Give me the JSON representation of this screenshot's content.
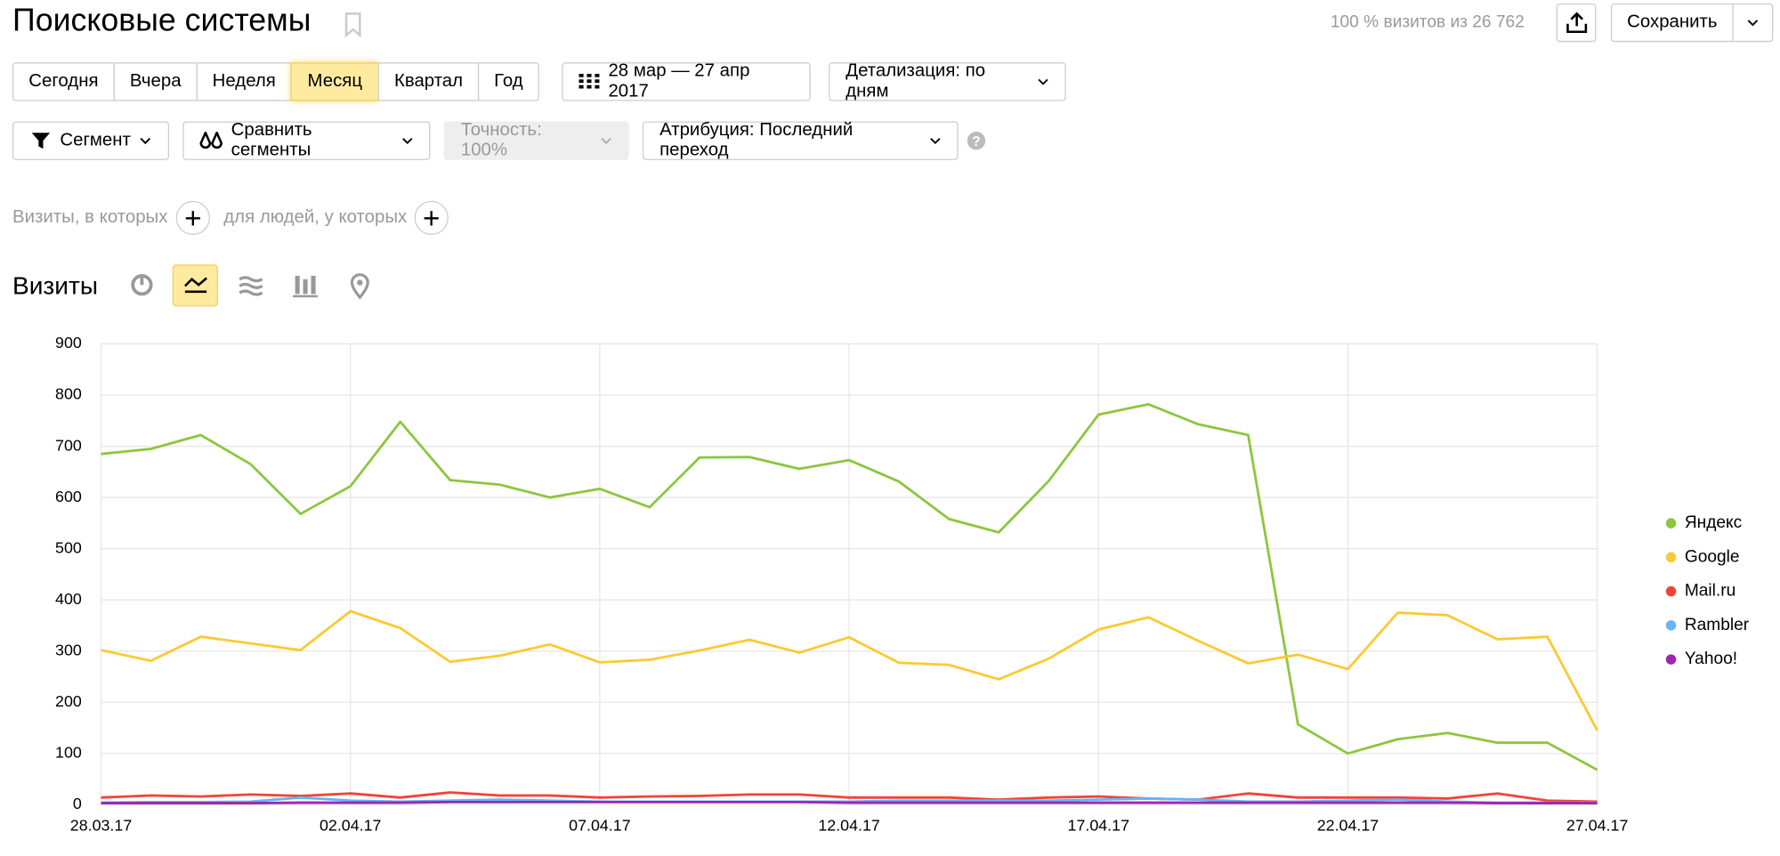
{
  "header": {
    "title": "Поисковые системы",
    "summary": "100 % визитов из 26 762",
    "save": "Сохранить"
  },
  "periods": [
    "Сегодня",
    "Вчера",
    "Неделя",
    "Месяц",
    "Квартал",
    "Год"
  ],
  "date_range": "28 мар — 27 апр 2017",
  "detail": "Детализация: по дням",
  "segment": "Сегмент",
  "compare": "Сравнить сегменты",
  "accuracy": "Точность: 100%",
  "attribution": "Атрибуция: Последний переход",
  "filter": {
    "visits": "Визиты, в которых",
    "people": "для людей, у которых"
  },
  "chart_data": {
    "type": "line",
    "title": "Визиты",
    "categories": [
      "28.03.17",
      null,
      null,
      null,
      null,
      "02.04.17",
      null,
      null,
      null,
      null,
      "07.04.17",
      null,
      null,
      null,
      null,
      "12.04.17",
      null,
      null,
      null,
      null,
      "17.04.17",
      null,
      null,
      null,
      null,
      "22.04.17",
      null,
      null,
      null,
      null,
      "27.04.17"
    ],
    "xtick_colors": [
      null,
      null,
      null,
      null,
      null,
      "#c8102e",
      null,
      null,
      null,
      null,
      null,
      null,
      null,
      null,
      null,
      null,
      null,
      null,
      null,
      null,
      null,
      null,
      null,
      null,
      null,
      "#c8102e",
      null,
      null,
      null,
      null,
      null
    ],
    "series": [
      {
        "name": "Яндекс",
        "color": "#8dc63f",
        "values": [
          685,
          695,
          722,
          665,
          568,
          622,
          748,
          634,
          625,
          600,
          617,
          581,
          678,
          679,
          656,
          673,
          631,
          558,
          532,
          632,
          762,
          782,
          743,
          722,
          157,
          100,
          128,
          140,
          121,
          121,
          68
        ]
      },
      {
        "name": "Google",
        "color": "#fcc934",
        "values": [
          302,
          281,
          328,
          315,
          302,
          378,
          345,
          279,
          291,
          313,
          278,
          283,
          301,
          322,
          297,
          327,
          277,
          273,
          245,
          285,
          342,
          366,
          320,
          276,
          293,
          265,
          375,
          370,
          323,
          328,
          145
        ]
      },
      {
        "name": "Mail.ru",
        "color": "#f44336",
        "values": [
          14,
          18,
          16,
          20,
          17,
          22,
          14,
          24,
          18,
          18,
          14,
          16,
          17,
          20,
          20,
          14,
          14,
          14,
          10,
          14,
          16,
          12,
          10,
          22,
          14,
          14,
          14,
          12,
          22,
          8,
          6
        ]
      },
      {
        "name": "Rambler",
        "color": "#64b5f6",
        "values": [
          4,
          5,
          5,
          6,
          14,
          8,
          6,
          8,
          10,
          8,
          6,
          6,
          6,
          6,
          6,
          6,
          8,
          8,
          8,
          8,
          10,
          12,
          10,
          6,
          6,
          8,
          10,
          6,
          4,
          4,
          4
        ]
      },
      {
        "name": "Yahoo!",
        "color": "#9c27b0",
        "values": [
          3,
          3,
          3,
          3,
          4,
          4,
          4,
          5,
          5,
          5,
          5,
          5,
          5,
          5,
          5,
          4,
          4,
          4,
          4,
          4,
          4,
          4,
          4,
          4,
          4,
          4,
          4,
          4,
          3,
          3,
          3
        ]
      }
    ],
    "ylim": [
      0,
      900
    ],
    "yticks": [
      0,
      100,
      200,
      300,
      400,
      500,
      600,
      700,
      800,
      900
    ],
    "grid": true,
    "legend": "right"
  }
}
